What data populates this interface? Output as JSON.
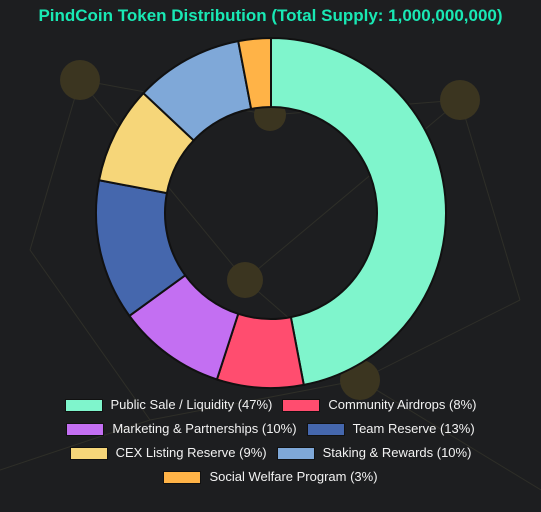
{
  "chart_data": {
    "type": "pie",
    "variant": "donut",
    "title": "PindCoin Token Distribution (Total Supply: 1,000,000,000)",
    "legend_position": "bottom",
    "slices": [
      {
        "label": "Public Sale / Liquidity (47%)",
        "value": 47,
        "color": "#7ff5cc"
      },
      {
        "label": "Community Airdrops (8%)",
        "value": 8,
        "color": "#ff4d6f"
      },
      {
        "label": "Marketing & Partnerships (10%)",
        "value": 10,
        "color": "#c36ff2"
      },
      {
        "label": "Team Reserve (13%)",
        "value": 13,
        "color": "#4567ad"
      },
      {
        "label": "CEX Listing Reserve (9%)",
        "value": 9,
        "color": "#f6d679"
      },
      {
        "label": "Staking & Rewards (10%)",
        "value": 10,
        "color": "#7fa8d8"
      },
      {
        "label": "Social Welfare Program (3%)",
        "value": 3,
        "color": "#ffb347"
      }
    ]
  }
}
